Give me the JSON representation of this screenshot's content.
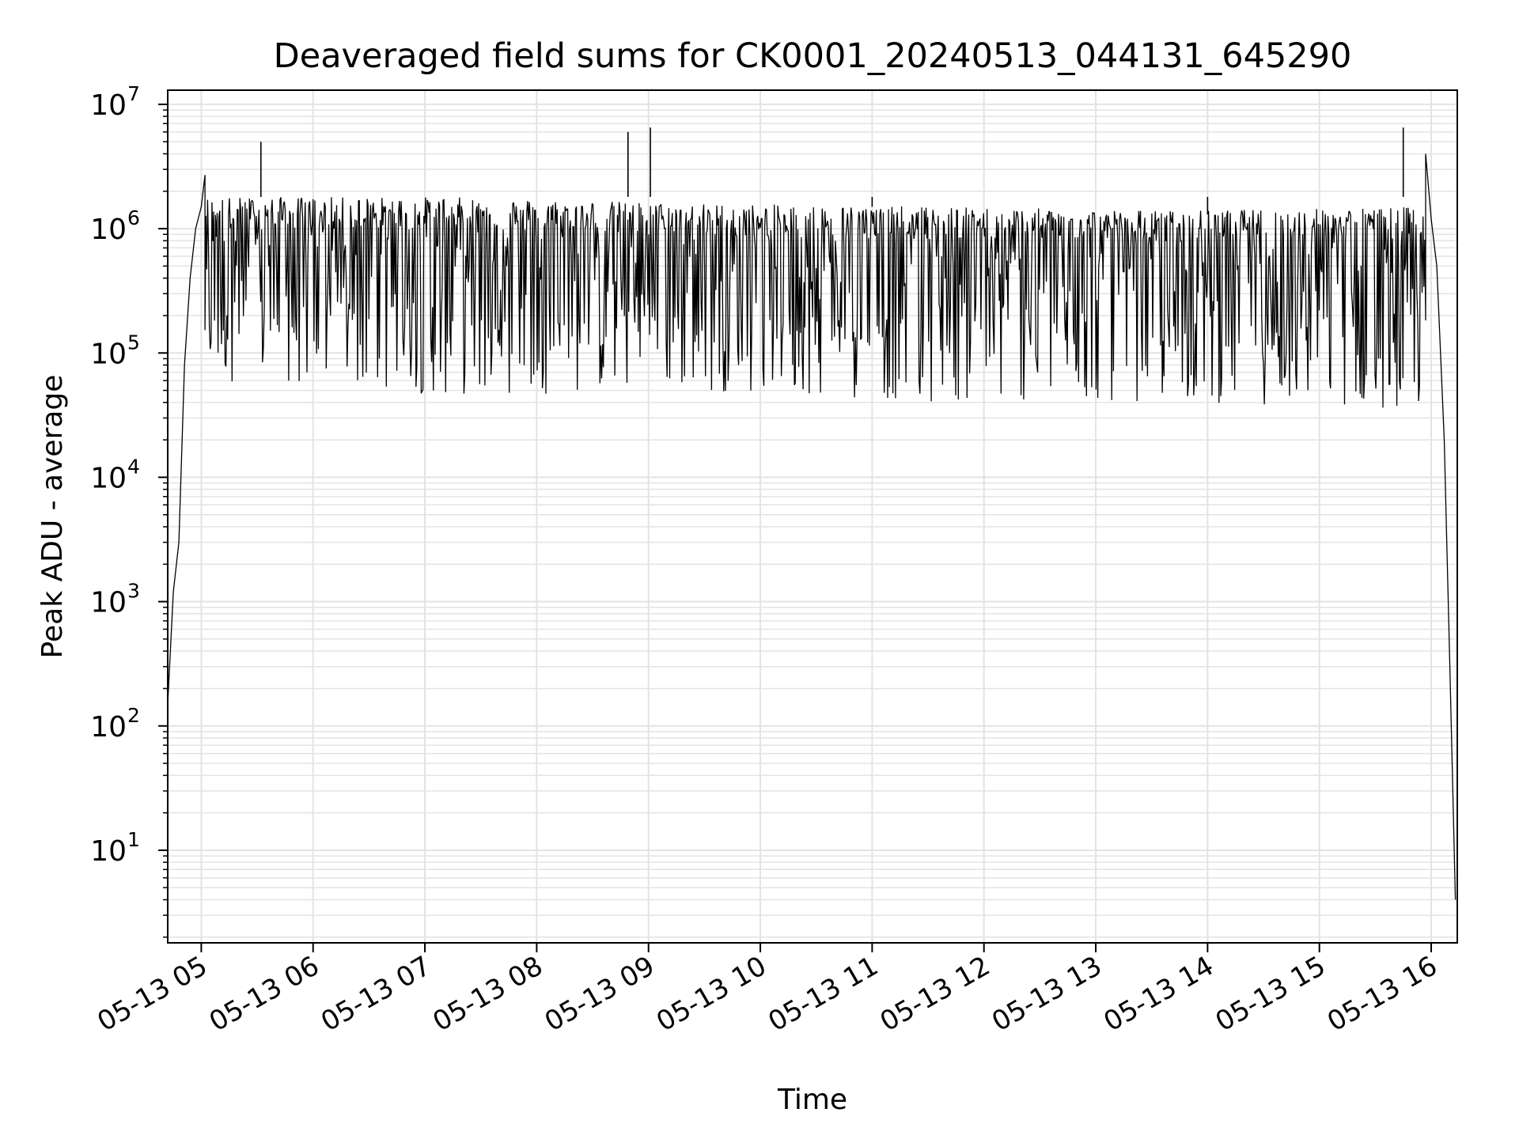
{
  "chart_data": {
    "type": "line",
    "title": "Deaveraged field sums for CK0001_20240513_044131_645290",
    "xlabel": "Time",
    "ylabel": "Peak ADU - average",
    "yscale": "log",
    "ylim": [
      1.8,
      13000000
    ],
    "xlim": [
      "2024-05-13 04:42",
      "2024-05-13 16:14"
    ],
    "grid": "on (major and minor)",
    "line_color": "#000000",
    "grid_color": "#e3e3e3",
    "x_ticks": [
      {
        "t": "2024-05-13 05:00",
        "label": "05-13 05"
      },
      {
        "t": "2024-05-13 06:00",
        "label": "05-13 06"
      },
      {
        "t": "2024-05-13 07:00",
        "label": "05-13 07"
      },
      {
        "t": "2024-05-13 08:00",
        "label": "05-13 08"
      },
      {
        "t": "2024-05-13 09:00",
        "label": "05-13 09"
      },
      {
        "t": "2024-05-13 10:00",
        "label": "05-13 10"
      },
      {
        "t": "2024-05-13 11:00",
        "label": "05-13 11"
      },
      {
        "t": "2024-05-13 12:00",
        "label": "05-13 12"
      },
      {
        "t": "2024-05-13 13:00",
        "label": "05-13 13"
      },
      {
        "t": "2024-05-13 14:00",
        "label": "05-13 14"
      },
      {
        "t": "2024-05-13 15:00",
        "label": "05-13 15"
      },
      {
        "t": "2024-05-13 16:00",
        "label": "05-13 16"
      }
    ],
    "y_ticks": [
      {
        "value": 10,
        "base": "10",
        "exp": "1"
      },
      {
        "value": 100,
        "base": "10",
        "exp": "2"
      },
      {
        "value": 1000,
        "base": "10",
        "exp": "3"
      },
      {
        "value": 10000,
        "base": "10",
        "exp": "4"
      },
      {
        "value": 100000,
        "base": "10",
        "exp": "5"
      },
      {
        "value": 1000000,
        "base": "10",
        "exp": "6"
      },
      {
        "value": 10000000,
        "base": "10",
        "exp": "7"
      }
    ],
    "series": [
      {
        "x": [
          "2024-05-13 04:42",
          "2024-05-13 04:45",
          "2024-05-13 04:48",
          "2024-05-13 04:51",
          "2024-05-13 04:54",
          "2024-05-13 04:57",
          "2024-05-13 05:00",
          "2024-05-13 05:02",
          "2024-05-13 05:32",
          "2024-05-13 08:49",
          "2024-05-13 09:01",
          "2024-05-13 11:00",
          "2024-05-13 14:00",
          "2024-05-13 15:45",
          "2024-05-13 15:57",
          "2024-05-13 16:00",
          "2024-05-13 16:03",
          "2024-05-13 16:07",
          "2024-05-13 16:10",
          "2024-05-13 16:13"
        ],
        "y": [
          150,
          1200,
          3000,
          80000,
          400000,
          1000000,
          1500000,
          2700000,
          5000000,
          6000000,
          6500000,
          1500000,
          1300000,
          6500000,
          4000000,
          1200000,
          500000,
          20000,
          300,
          4
        ],
        "band_start": "2024-05-13 05:02",
        "band_end": "2024-05-13 15:57",
        "band_upper": [
          1800000,
          1800000,
          1600000,
          1500000,
          1400000,
          1500000
        ],
        "band_lower": [
          60000,
          45000,
          50000,
          40000,
          40000,
          35000
        ]
      }
    ]
  }
}
